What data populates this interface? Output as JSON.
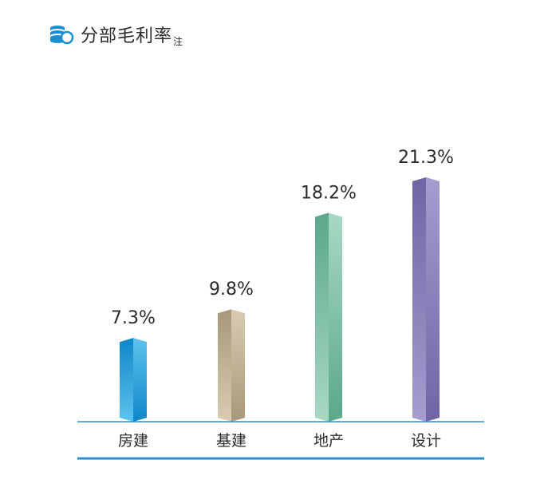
{
  "header": {
    "title": "分部毛利率",
    "note_mark": "注",
    "icon": "coin-stack-icon"
  },
  "chart_data": {
    "type": "bar",
    "categories": [
      "房建",
      "基建",
      "地产",
      "设计"
    ],
    "values": [
      7.3,
      9.8,
      18.2,
      21.3
    ],
    "data_labels": [
      "7.3%",
      "9.8%",
      "18.2%",
      "21.3%"
    ],
    "unit": "%",
    "ylim": [
      0,
      25
    ],
    "grid": false,
    "legend": "none",
    "colors": {
      "房建": {
        "dark": "#0f86c8",
        "light": "#5cc3ee"
      },
      "基建": {
        "dark": "#a8977a",
        "light": "#d9ccb2"
      },
      "地产": {
        "dark": "#5aa88a",
        "light": "#a9d8c4"
      },
      "设计": {
        "dark": "#6e65a4",
        "light": "#a59ccf"
      }
    },
    "axis_color": "#2a8fcf"
  }
}
